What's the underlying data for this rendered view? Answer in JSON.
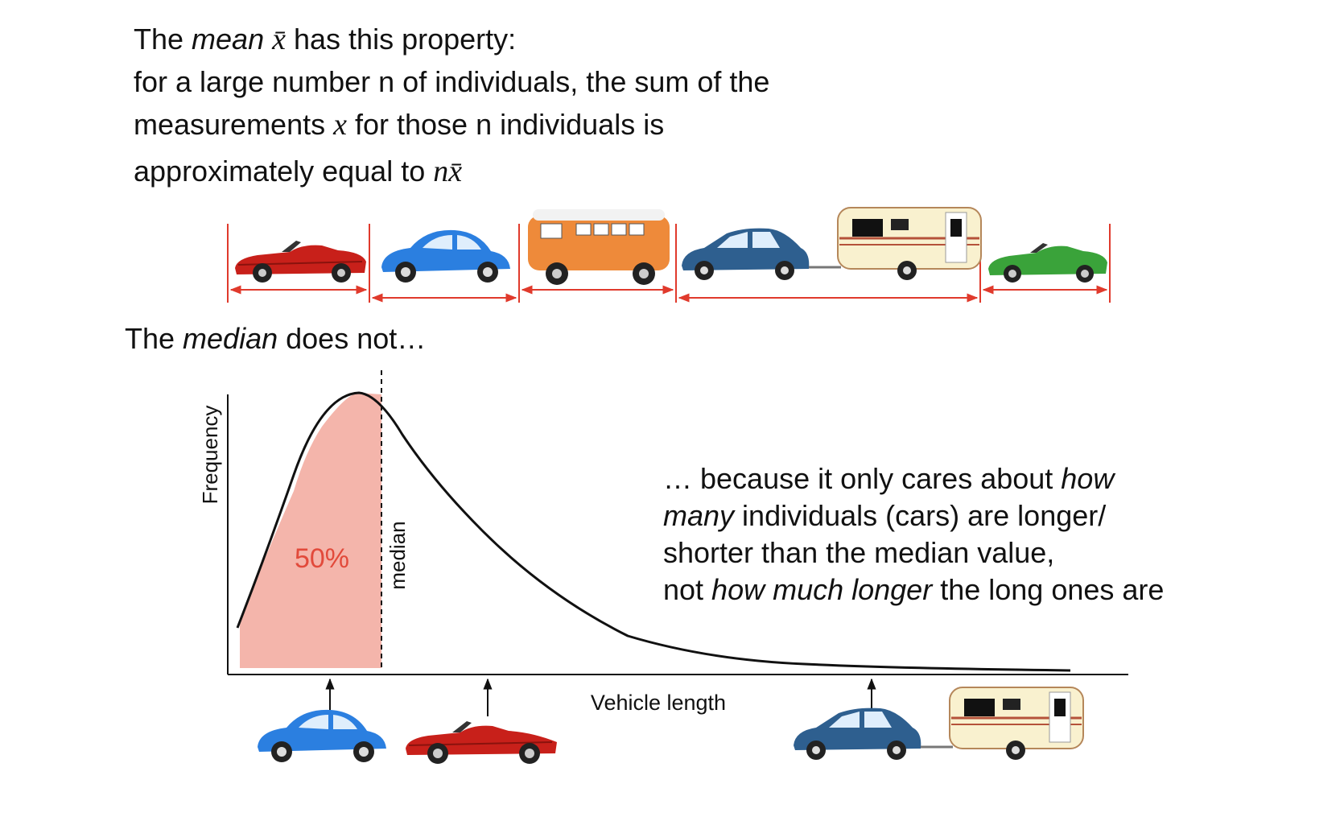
{
  "intro": {
    "line1": {
      "pre": "The ",
      "em": "mean",
      "math": "x̄",
      "post": " has this property:"
    },
    "line2": "for a large number n of individuals, the sum of the",
    "line3": {
      "pre": "measurements ",
      "math": "x",
      "post": " for those n individuals is"
    },
    "line4": {
      "pre": "approximately equal to ",
      "math": "nx̄"
    }
  },
  "vehicle_row": [
    "red-convertible",
    "blue-beetle",
    "orange-van",
    "blue-hatchback-with-caravan",
    "green-convertible"
  ],
  "median_heading": {
    "pre": "The ",
    "em": "median",
    "post": " does not…"
  },
  "explanation": {
    "line1": {
      "pre": "… because it only cares about ",
      "em": "how"
    },
    "line2": {
      "em": "many",
      "post": " individuals (cars) are longer/"
    },
    "line3": "shorter than the median value,",
    "line4": {
      "pre": "not ",
      "em": "how much longer",
      "post": " the long ones are"
    }
  },
  "chart": {
    "ylabel": "Frequency",
    "xlabel": "Vehicle length",
    "median_label": "median",
    "percent_label": "50%",
    "colors": {
      "shade": "#f4b5ab",
      "percent": "#e24a3b",
      "measure": "#e03a2c"
    },
    "markers": [
      "blue-beetle",
      "red-convertible",
      "blue-hatchback-with-caravan"
    ]
  }
}
